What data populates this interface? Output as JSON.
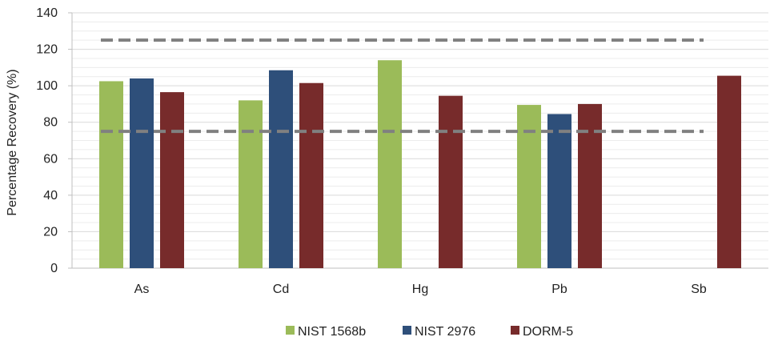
{
  "chart_data": {
    "type": "bar",
    "categories": [
      "As",
      "Cd",
      "Hg",
      "Pb",
      "Sb"
    ],
    "series": [
      {
        "name": "NIST 1568b",
        "color": "#9bbb59",
        "values": [
          102.5,
          92,
          114,
          89.5,
          null
        ]
      },
      {
        "name": "NIST 2976",
        "color": "#2e4f7a",
        "values": [
          104,
          108.5,
          null,
          84.5,
          null
        ]
      },
      {
        "name": "DORM-5",
        "color": "#772b2b",
        "values": [
          96.5,
          101.5,
          94.5,
          90,
          105.5
        ]
      }
    ],
    "title": "",
    "xlabel": "",
    "ylabel": "Percentage Recovery (%)",
    "ylim": [
      0,
      140
    ],
    "yticks": [
      0,
      20,
      40,
      60,
      80,
      100,
      120,
      140
    ],
    "reference_lines": [
      {
        "value": 125,
        "style": "dashed",
        "color": "#808080"
      },
      {
        "value": 75,
        "style": "dashed",
        "color": "#808080"
      }
    ],
    "grid": true,
    "legend_position": "bottom"
  }
}
